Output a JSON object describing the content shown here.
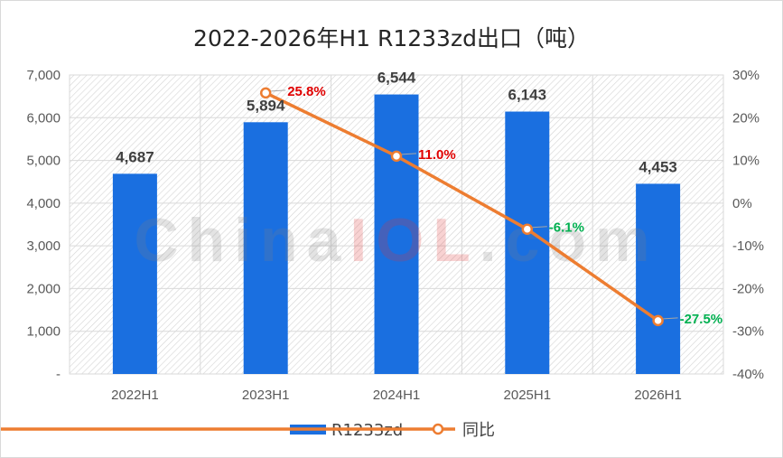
{
  "chart_data": {
    "type": "bar",
    "title": "2022-2026年H1 R1233zd出口（吨）",
    "categories": [
      "2022H1",
      "2023H1",
      "2024H1",
      "2025H1",
      "2026H1"
    ],
    "series": [
      {
        "name": "R1233zd",
        "type": "bar",
        "axis": "left",
        "color": "#1a6fe0",
        "values": [
          4687,
          5894,
          6544,
          6143,
          4453
        ],
        "labels": [
          "4,687",
          "5,894",
          "6,544",
          "6,143",
          "4,453"
        ]
      },
      {
        "name": "同比",
        "type": "line",
        "axis": "right",
        "color": "#ed7d31",
        "values": [
          null,
          25.8,
          11.0,
          -6.1,
          -27.5
        ],
        "labels": [
          "",
          "25.8%",
          "11.0%",
          "-6.1%",
          "-27.5%"
        ],
        "label_colors": [
          "",
          "#e00000",
          "#e00000",
          "#00b050",
          "#00b050"
        ]
      }
    ],
    "y_left": {
      "ylim": [
        0,
        7000
      ],
      "ticks": [
        0,
        1000,
        2000,
        3000,
        4000,
        5000,
        6000,
        7000
      ],
      "tick_labels": [
        "-",
        "1,000",
        "2,000",
        "3,000",
        "4,000",
        "5,000",
        "6,000",
        "7,000"
      ]
    },
    "y_right": {
      "ylim": [
        -40,
        30
      ],
      "ticks": [
        -40,
        -30,
        -20,
        -10,
        0,
        10,
        20,
        30
      ],
      "tick_labels": [
        "-40%",
        "-30%",
        "-20%",
        "-10%",
        "0%",
        "10%",
        "20%",
        "30%"
      ]
    },
    "legend": {
      "position": "bottom",
      "entries": [
        "R1233zd",
        "同比"
      ]
    },
    "grid": true,
    "plot_background": "hatched"
  },
  "watermark": {
    "parts": [
      {
        "text": "China",
        "color": "#7f7f7f"
      },
      {
        "text": "IOL",
        "color": "#e03030"
      },
      {
        "text": ".com",
        "color": "#7f7f7f"
      }
    ]
  }
}
